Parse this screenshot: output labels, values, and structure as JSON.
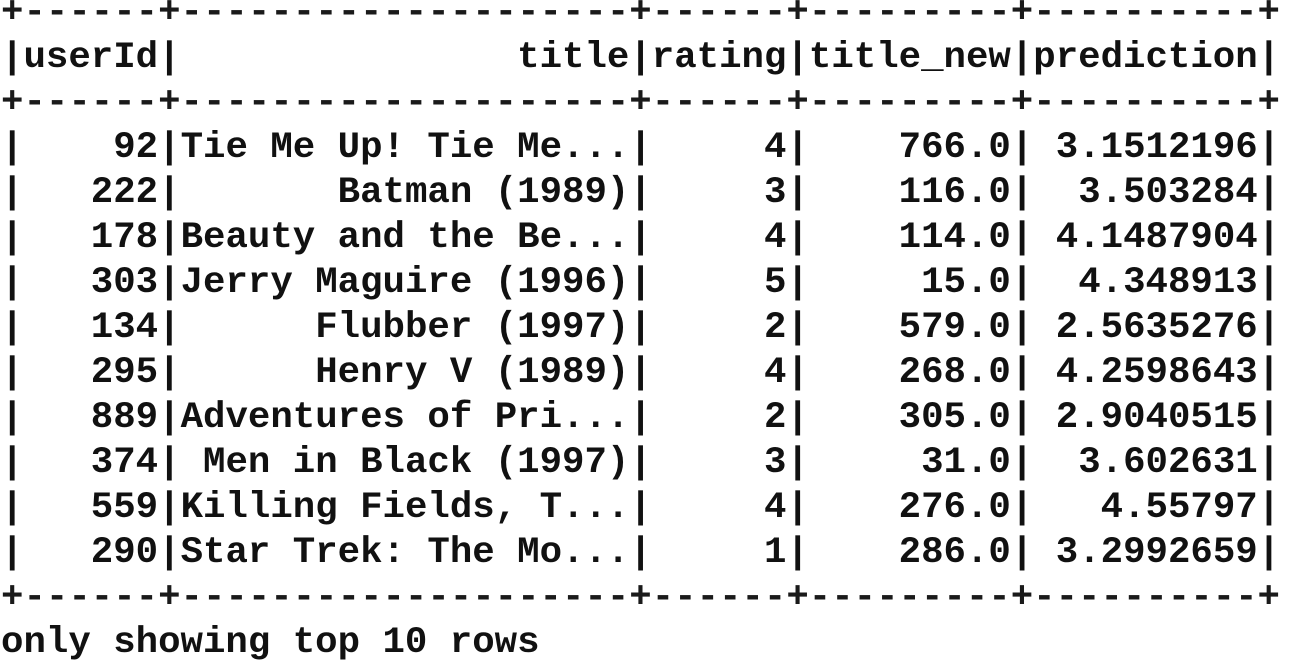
{
  "table": {
    "columns": [
      "userId",
      "title",
      "rating",
      "title_new",
      "prediction"
    ],
    "rows": [
      [
        "92",
        "Tie Me Up! Tie Me...",
        "4",
        "766.0",
        "3.1512196"
      ],
      [
        "222",
        "Batman (1989)",
        "3",
        "116.0",
        "3.503284"
      ],
      [
        "178",
        "Beauty and the Be...",
        "4",
        "114.0",
        "4.1487904"
      ],
      [
        "303",
        "Jerry Maguire (1996)",
        "5",
        "15.0",
        "4.348913"
      ],
      [
        "134",
        "Flubber (1997)",
        "2",
        "579.0",
        "2.5635276"
      ],
      [
        "295",
        "Henry V (1989)",
        "4",
        "268.0",
        "4.2598643"
      ],
      [
        "889",
        "Adventures of Pri...",
        "2",
        "305.0",
        "2.9040515"
      ],
      [
        "374",
        "Men in Black (1997)",
        "3",
        "31.0",
        "3.602631"
      ],
      [
        "559",
        "Killing Fields, T...",
        "4",
        "276.0",
        "4.55797"
      ],
      [
        "290",
        "Star Trek: The Mo...",
        "1",
        "286.0",
        "3.2992659"
      ]
    ]
  },
  "footer": "only showing top 10 rows"
}
